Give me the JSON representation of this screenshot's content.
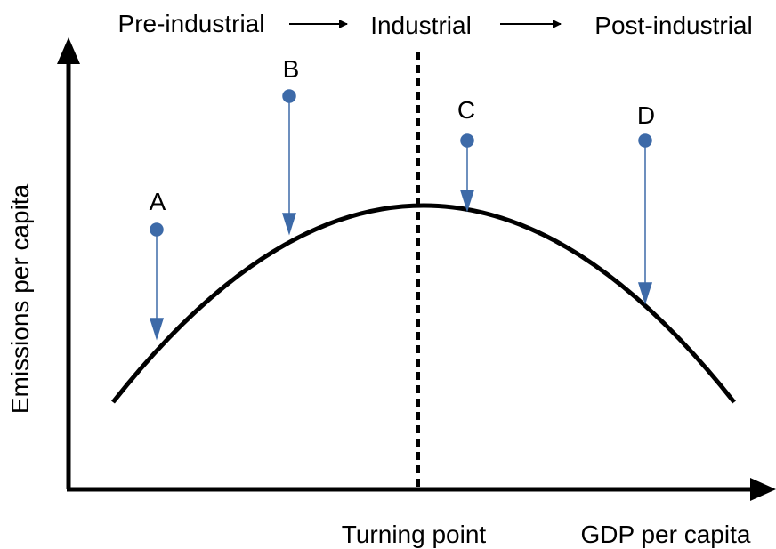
{
  "stages": [
    "Pre-industrial",
    "Industrial",
    "Post-industrial"
  ],
  "axes": {
    "x": "GDP per capita",
    "y": "Emissions per capita"
  },
  "turning_point": "Turning point",
  "points": [
    {
      "label": "A"
    },
    {
      "label": "B"
    },
    {
      "label": "C"
    },
    {
      "label": "D"
    }
  ]
}
